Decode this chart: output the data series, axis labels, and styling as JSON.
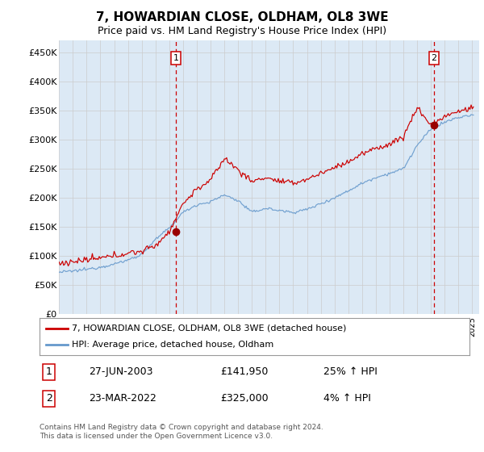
{
  "title": "7, HOWARDIAN CLOSE, OLDHAM, OL8 3WE",
  "subtitle": "Price paid vs. HM Land Registry's House Price Index (HPI)",
  "plot_bg_color": "#dce9f5",
  "ylim": [
    0,
    470000
  ],
  "yticks": [
    0,
    50000,
    100000,
    150000,
    200000,
    250000,
    300000,
    350000,
    400000,
    450000
  ],
  "red_line_color": "#cc0000",
  "blue_line_color": "#6699cc",
  "marker1_date": 2003.49,
  "marker1_price": 141950,
  "marker1_label": "1",
  "marker2_date": 2022.22,
  "marker2_price": 325000,
  "marker2_label": "2",
  "vline_color": "#cc0000",
  "legend_line1": "7, HOWARDIAN CLOSE, OLDHAM, OL8 3WE (detached house)",
  "legend_line2": "HPI: Average price, detached house, Oldham",
  "annot1_num": "1",
  "annot1_date": "27-JUN-2003",
  "annot1_price": "£141,950",
  "annot1_hpi": "25% ↑ HPI",
  "annot2_num": "2",
  "annot2_date": "23-MAR-2022",
  "annot2_price": "£325,000",
  "annot2_hpi": "4% ↑ HPI",
  "footer": "Contains HM Land Registry data © Crown copyright and database right 2024.\nThis data is licensed under the Open Government Licence v3.0.",
  "hpi_base": {
    "1995": 72000,
    "1996": 74000,
    "1997": 77000,
    "1998": 81000,
    "1999": 86000,
    "2000": 93000,
    "2001": 103000,
    "2002": 128000,
    "2003": 148000,
    "2004": 175000,
    "2005": 188000,
    "2006": 193000,
    "2007": 205000,
    "2008": 195000,
    "2009": 175000,
    "2010": 182000,
    "2011": 178000,
    "2012": 175000,
    "2013": 180000,
    "2014": 190000,
    "2015": 200000,
    "2016": 212000,
    "2017": 225000,
    "2018": 235000,
    "2019": 242000,
    "2020": 250000,
    "2021": 290000,
    "2022": 318000,
    "2023": 330000,
    "2024": 338000,
    "2025": 342000
  },
  "prop_base": {
    "1995": 87000,
    "1996": 90000,
    "1997": 93000,
    "1998": 96000,
    "1999": 100000,
    "2000": 105000,
    "2001": 108000,
    "2002": 118000,
    "2003": 141950,
    "2004": 190000,
    "2005": 215000,
    "2006": 230000,
    "2007": 268000,
    "2008": 248000,
    "2009": 228000,
    "2010": 235000,
    "2011": 228000,
    "2012": 225000,
    "2013": 232000,
    "2014": 242000,
    "2015": 252000,
    "2016": 262000,
    "2017": 275000,
    "2018": 285000,
    "2019": 292000,
    "2020": 305000,
    "2021": 355000,
    "2022": 325000,
    "2023": 340000,
    "2024": 348000,
    "2025": 355000
  }
}
